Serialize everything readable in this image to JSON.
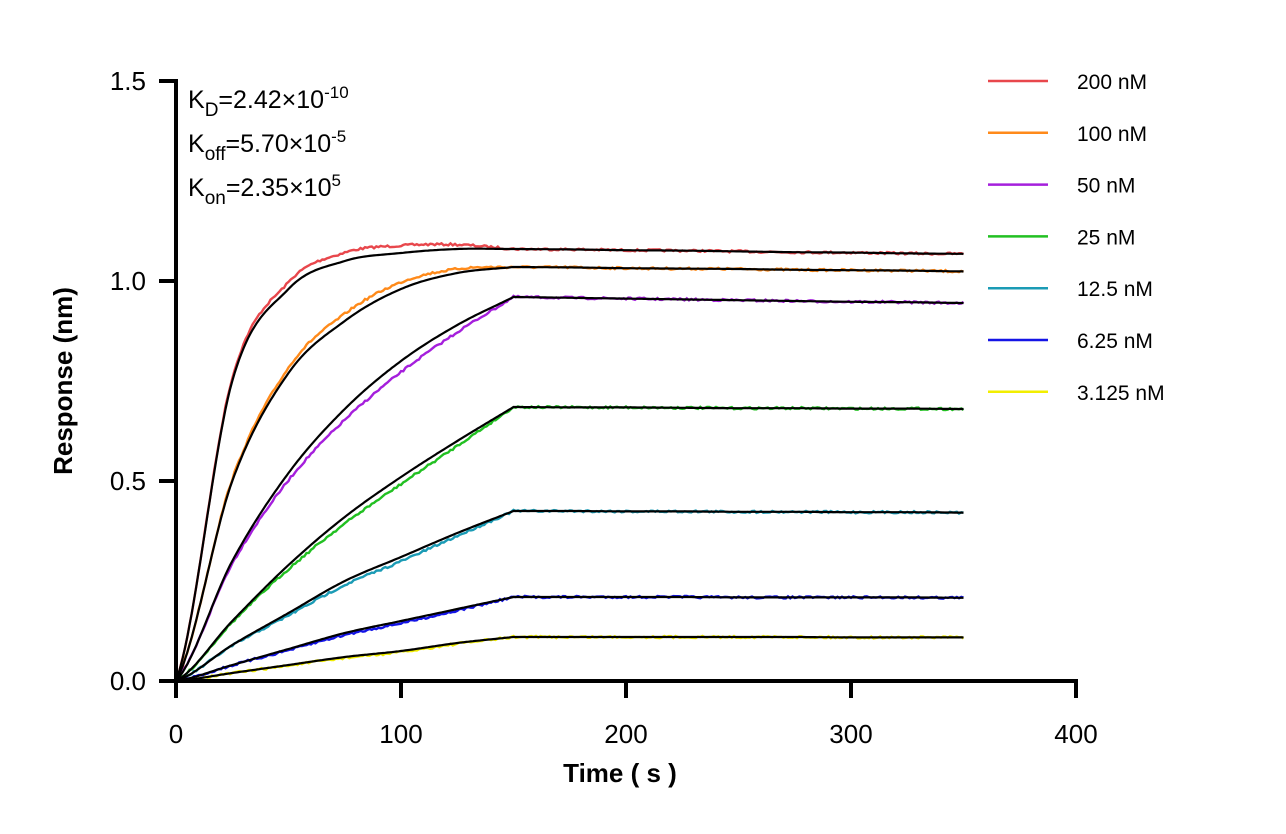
{
  "chart_data": {
    "type": "line",
    "xlabel": "Time ( s )",
    "ylabel": "Response (nm)",
    "xlim": [
      0,
      400
    ],
    "ylim": [
      0,
      1.5
    ],
    "x_ticks": [
      "0",
      "100",
      "200",
      "300",
      "400"
    ],
    "y_ticks": [
      "0.0",
      "0.5",
      "1.0",
      "1.5"
    ],
    "grid": false,
    "legend_position": "right",
    "annotations": [
      {
        "k": "K",
        "sub": "D",
        "eq": "=2.42×10",
        "sup": "-10"
      },
      {
        "k": "K",
        "sub": "off",
        "eq": "=5.70×10",
        "sup": "-5"
      },
      {
        "k": "K",
        "sub": "on",
        "eq": "=2.35×10",
        "sup": "5"
      }
    ],
    "fit_color": "#000000",
    "x": [
      0,
      25,
      50,
      75,
      100,
      125,
      150,
      175,
      200,
      225,
      250,
      275,
      300,
      325,
      350
    ],
    "series": [
      {
        "name": "200 nM",
        "color": "#e8474c",
        "values": [
          0,
          0.75,
          0.98,
          1.05,
          1.07,
          1.08,
          1.08,
          1.079,
          1.077,
          1.076,
          1.074,
          1.072,
          1.071,
          1.069,
          1.068
        ]
      },
      {
        "name": "100 nM",
        "color": "#ff8a1a",
        "values": [
          0,
          0.5,
          0.77,
          0.9,
          0.98,
          1.02,
          1.035,
          1.034,
          1.032,
          1.031,
          1.03,
          1.028,
          1.027,
          1.026,
          1.024
        ]
      },
      {
        "name": "50 nM",
        "color": "#a51fdc",
        "values": [
          0,
          0.3,
          0.52,
          0.68,
          0.8,
          0.89,
          0.96,
          0.958,
          0.956,
          0.954,
          0.952,
          0.95,
          0.948,
          0.947,
          0.945
        ]
      },
      {
        "name": "25 nM",
        "color": "#22c022",
        "values": [
          0,
          0.15,
          0.29,
          0.41,
          0.51,
          0.6,
          0.685,
          0.684,
          0.684,
          0.683,
          0.682,
          0.682,
          0.681,
          0.681,
          0.68
        ]
      },
      {
        "name": "12.5 nM",
        "color": "#1b9bb5",
        "values": [
          0,
          0.09,
          0.17,
          0.25,
          0.31,
          0.37,
          0.425,
          0.425,
          0.424,
          0.424,
          0.423,
          0.423,
          0.422,
          0.422,
          0.421
        ]
      },
      {
        "name": "6.25 nM",
        "color": "#1414e6",
        "values": [
          0,
          0.04,
          0.08,
          0.12,
          0.15,
          0.18,
          0.21,
          0.21,
          0.21,
          0.21,
          0.209,
          0.209,
          0.209,
          0.209,
          0.208
        ]
      },
      {
        "name": "3.125 nM",
        "color": "#f2ee00",
        "values": [
          0,
          0.02,
          0.04,
          0.06,
          0.075,
          0.095,
          0.11,
          0.11,
          0.11,
          0.11,
          0.11,
          0.11,
          0.109,
          0.109,
          0.109
        ]
      }
    ]
  }
}
